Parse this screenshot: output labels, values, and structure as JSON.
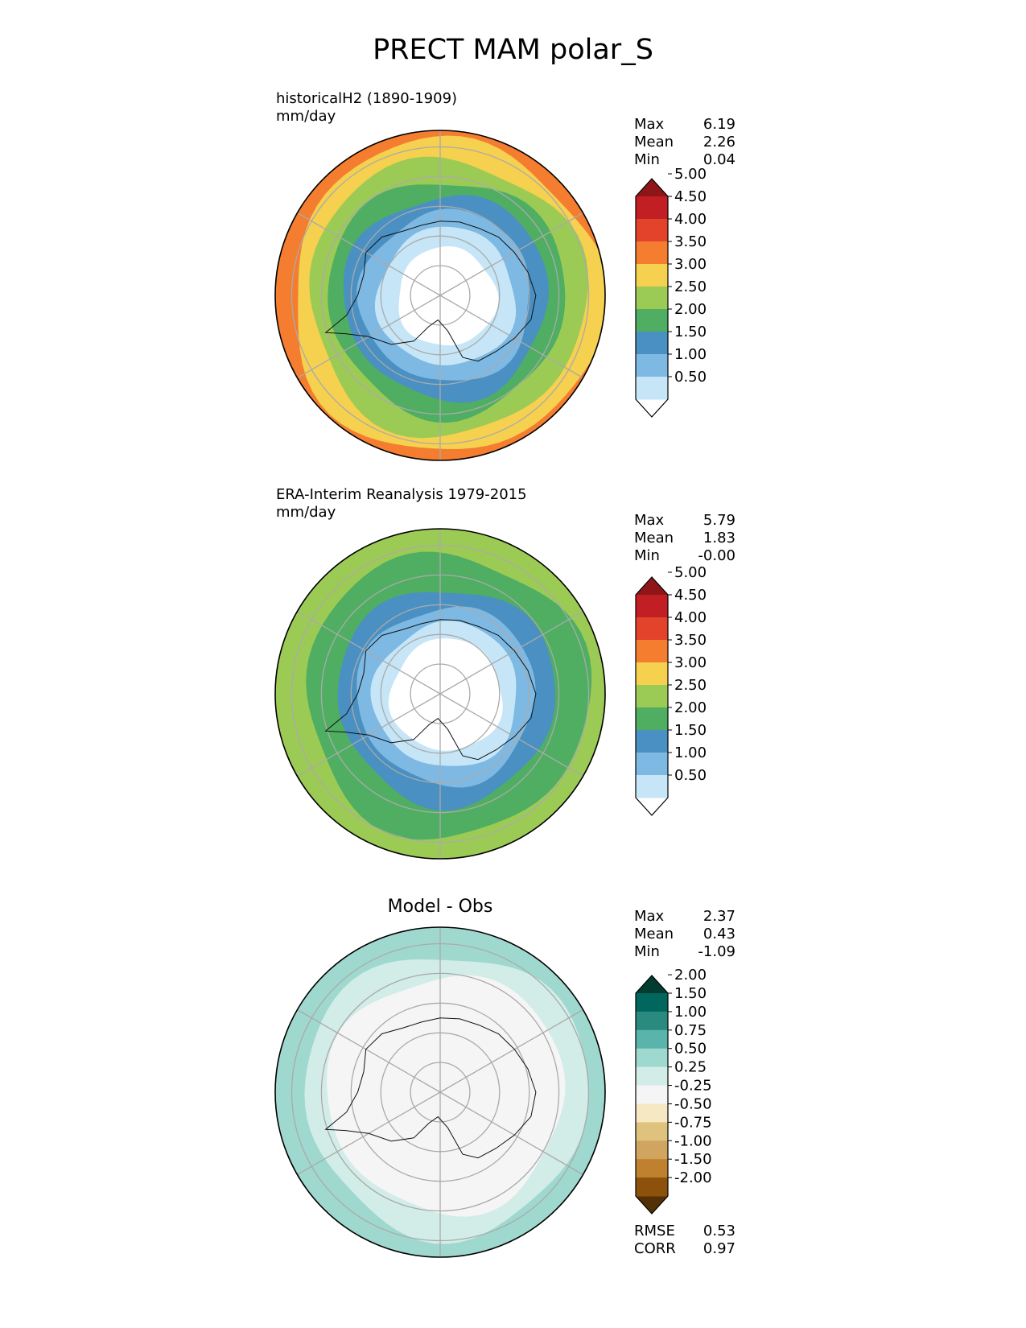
{
  "title": "PRECT MAM polar_S",
  "panels": [
    {
      "id": "test",
      "title_line1": "historicalH2 (1890-1909)",
      "title_line2": "mm/day",
      "stats": [
        {
          "label": "Max",
          "value": "6.19"
        },
        {
          "label": "Mean",
          "value": "2.26"
        },
        {
          "label": "Min",
          "value": "0.04"
        }
      ]
    },
    {
      "id": "ref",
      "title_line1": "ERA-Interim Reanalysis 1979-2015",
      "title_line2": "mm/day",
      "stats": [
        {
          "label": "Max",
          "value": "5.79"
        },
        {
          "label": "Mean",
          "value": "1.83"
        },
        {
          "label": "Min",
          "value": "-0.00"
        }
      ]
    },
    {
      "id": "diff",
      "title_center": "Model - Obs",
      "stats": [
        {
          "label": "Max",
          "value": "2.37"
        },
        {
          "label": "Mean",
          "value": "0.43"
        },
        {
          "label": "Min",
          "value": "-1.09"
        }
      ],
      "extra_stats": [
        {
          "label": "RMSE",
          "value": "0.53"
        },
        {
          "label": "CORR",
          "value": "0.97"
        }
      ]
    }
  ],
  "chart_data": [
    {
      "type": "heatmap",
      "projection": "south-polar-stereographic",
      "units": "mm/day",
      "colorbar_ticks": [
        "0.50",
        "1.00",
        "1.50",
        "2.00",
        "2.50",
        "3.00",
        "3.50",
        "4.00",
        "4.50",
        "5.00"
      ],
      "colorbar_colors": [
        "#ffffff",
        "#c6e6f8",
        "#7eb9e3",
        "#4a90c2",
        "#4fae62",
        "#9ccb55",
        "#f6d04f",
        "#f47d2f",
        "#e2432a",
        "#c21f24",
        "#8e1619"
      ],
      "bands_from_pole_outward": [
        {
          "ring": 0.3,
          "value": "0.50"
        },
        {
          "ring": 0.42,
          "value": "1.00"
        },
        {
          "ring": 0.52,
          "value": "1.50"
        },
        {
          "ring": 0.62,
          "value": "2.00"
        },
        {
          "ring": 0.72,
          "value": "2.50"
        },
        {
          "ring": 0.84,
          "value": "3.00"
        },
        {
          "ring": 0.95,
          "value": "3.50"
        },
        {
          "ring": 1.0,
          "value": "4.00"
        }
      ]
    },
    {
      "type": "heatmap",
      "projection": "south-polar-stereographic",
      "units": "mm/day",
      "colorbar_ticks": [
        "0.50",
        "1.00",
        "1.50",
        "2.00",
        "2.50",
        "3.00",
        "3.50",
        "4.00",
        "4.50",
        "5.00"
      ],
      "colorbar_colors": [
        "#ffffff",
        "#c6e6f8",
        "#7eb9e3",
        "#4a90c2",
        "#4fae62",
        "#9ccb55",
        "#f6d04f",
        "#f47d2f",
        "#e2432a",
        "#c21f24",
        "#8e1619"
      ],
      "bands_from_pole_outward": [
        {
          "ring": 0.34,
          "value": "0.50"
        },
        {
          "ring": 0.44,
          "value": "1.00"
        },
        {
          "ring": 0.54,
          "value": "1.50"
        },
        {
          "ring": 0.66,
          "value": "2.00"
        },
        {
          "ring": 0.86,
          "value": "2.50"
        },
        {
          "ring": 1.0,
          "value": "3.00"
        }
      ]
    },
    {
      "type": "heatmap",
      "projection": "south-polar-stereographic",
      "units": "mm/day",
      "colorbar_ticks": [
        "-2.00",
        "-1.50",
        "-1.00",
        "-0.75",
        "-0.50",
        "-0.25",
        "0.25",
        "0.50",
        "0.75",
        "1.00",
        "1.50",
        "2.00"
      ],
      "colorbar_colors": [
        "#543005",
        "#8c510a",
        "#bf812d",
        "#cfa560",
        "#dfc27d",
        "#f6e8c3",
        "#f5f5f5",
        "#d2ece7",
        "#9fd8cf",
        "#5ab4ac",
        "#2b8a80",
        "#01665e",
        "#003c30"
      ],
      "bands_from_pole_outward": [
        {
          "ring": 0.55,
          "value": "0.00"
        },
        {
          "ring": 0.72,
          "value": "0.25"
        },
        {
          "ring": 0.86,
          "value": "0.50"
        },
        {
          "ring": 1.0,
          "value": "0.75"
        }
      ]
    }
  ]
}
